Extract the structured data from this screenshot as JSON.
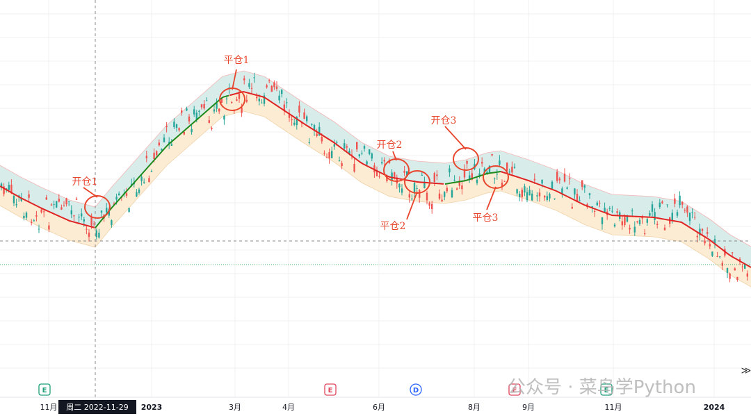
{
  "annotations": [
    "平仓1",
    "开仓1",
    "开仓2",
    "平仓2",
    "开仓3",
    "平仓3"
  ],
  "x_axis": {
    "labels": [
      "11月",
      "2023",
      "3月",
      "4月",
      "6月",
      "8月",
      "9月",
      "11月",
      "2024"
    ]
  },
  "crosshair": {
    "label": "周二 2022-11-29"
  },
  "events": [
    "E",
    "E",
    "D",
    "E",
    "E"
  ],
  "watermark": "公众号 · 菜鸟学Python"
}
